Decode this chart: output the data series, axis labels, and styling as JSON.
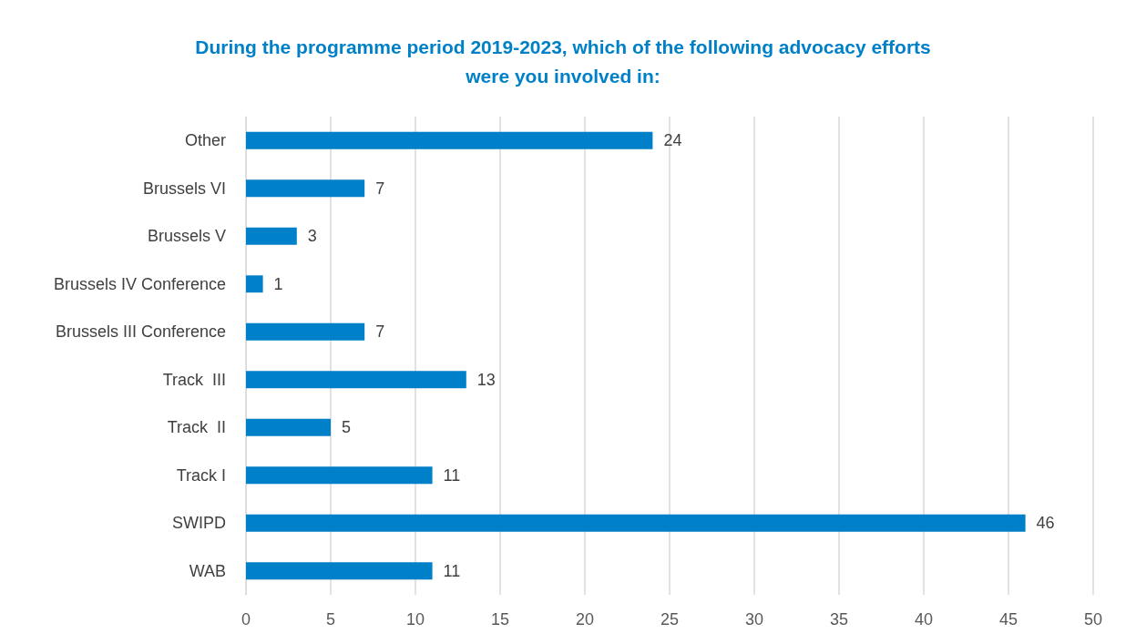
{
  "chart_data": {
    "type": "bar",
    "orientation": "horizontal",
    "title": "During the programme period 2019-2023, which of the following advocacy efforts\nwere you involved in:",
    "categories": [
      "Other",
      "Brussels VI",
      "Brussels V",
      "Brussels IV Conference",
      "Brussels III Conference",
      "Track  III",
      "Track  II",
      "Track I",
      "SWIPD",
      "WAB"
    ],
    "values": [
      24,
      7,
      3,
      1,
      7,
      13,
      5,
      11,
      46,
      11
    ],
    "color": "#0080c8",
    "xlim": [
      0,
      50
    ],
    "xticks": [
      0,
      5,
      10,
      15,
      20,
      25,
      30,
      35,
      40,
      45,
      50
    ],
    "grid": "x",
    "data_labels": true
  }
}
